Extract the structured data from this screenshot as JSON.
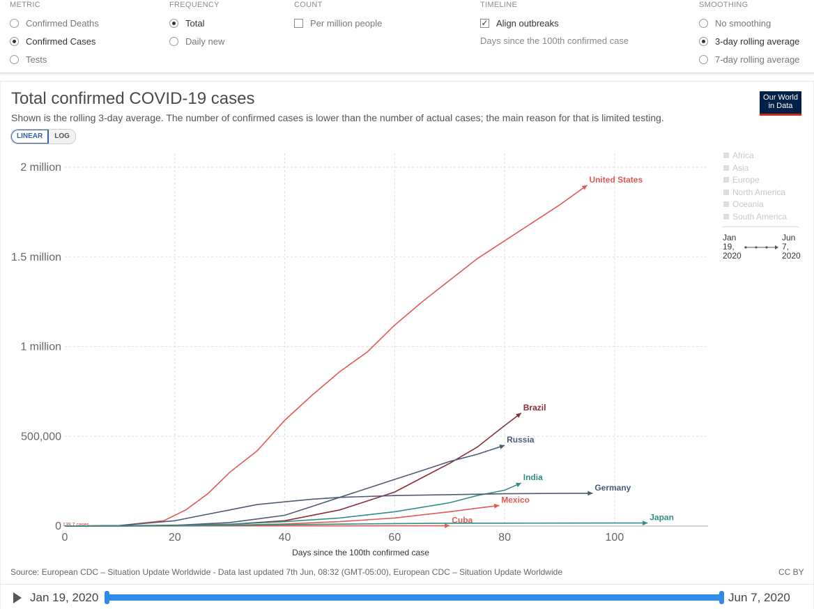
{
  "controls": {
    "metric": {
      "title": "METRIC",
      "options": [
        {
          "label": "Confirmed Deaths",
          "checked": false
        },
        {
          "label": "Confirmed Cases",
          "checked": true
        },
        {
          "label": "Tests",
          "checked": false
        }
      ]
    },
    "frequency": {
      "title": "FREQUENCY",
      "options": [
        {
          "label": "Total",
          "checked": true
        },
        {
          "label": "Daily new",
          "checked": false
        }
      ]
    },
    "count": {
      "title": "COUNT",
      "options": [
        {
          "label": "Per million people",
          "checked": false
        }
      ]
    },
    "timeline": {
      "title": "TIMELINE",
      "align_label": "Align outbreaks",
      "align_checked": true,
      "note": "Days since the 100th confirmed case"
    },
    "smoothing": {
      "title": "SMOOTHING",
      "options": [
        {
          "label": "No smoothing",
          "checked": false
        },
        {
          "label": "3-day rolling average",
          "checked": true
        },
        {
          "label": "7-day rolling average",
          "checked": false
        }
      ]
    }
  },
  "header": {
    "title": "Total confirmed COVID-19 cases",
    "subtitle": "Shown is the rolling 3-day average. The number of confirmed cases is lower than the number of actual cases; the main reason for that is limited testing.",
    "logo_line1": "Our World",
    "logo_line2": "in Data",
    "scale_linear": "LINEAR",
    "scale_log": "LOG"
  },
  "legend": {
    "regions": [
      "Africa",
      "Asia",
      "Europe",
      "North America",
      "Oceania",
      "South America"
    ],
    "start": [
      "Jan",
      "19,",
      "2020"
    ],
    "end": [
      "Jun",
      "7,",
      "2020"
    ]
  },
  "chart_data": {
    "type": "line",
    "title": "Total confirmed COVID-19 cases",
    "xlabel": "Days since the 100th confirmed case",
    "ylabel": "",
    "xlim": [
      0,
      117
    ],
    "ylim": [
      0,
      2000000
    ],
    "x_ticks": [
      "0",
      "20",
      "40",
      "60",
      "80",
      "100"
    ],
    "y_ticks": [
      "0",
      "500,000",
      "1 million",
      "1.5 million",
      "2 million"
    ],
    "min_label": "139.7 cases",
    "grid": true,
    "legend_position": "right",
    "series": [
      {
        "name": "United States",
        "color": "#e05a55",
        "x": [
          0,
          10,
          18,
          22,
          26,
          30,
          35,
          40,
          45,
          50,
          55,
          60,
          65,
          70,
          75,
          80,
          85,
          90,
          95
        ],
        "y": [
          140,
          3000,
          30000,
          90000,
          180000,
          300000,
          420000,
          590000,
          730000,
          860000,
          970000,
          1120000,
          1250000,
          1370000,
          1490000,
          1590000,
          1690000,
          1790000,
          1900000
        ]
      },
      {
        "name": "Brazil",
        "color": "#8b2d3b",
        "x": [
          0,
          10,
          20,
          30,
          40,
          50,
          55,
          60,
          65,
          70,
          75,
          80,
          83
        ],
        "y": [
          140,
          1500,
          5000,
          10000,
          30000,
          90000,
          140000,
          190000,
          270000,
          350000,
          440000,
          560000,
          630000
        ]
      },
      {
        "name": "Russia",
        "color": "#4c5a75",
        "x": [
          0,
          10,
          20,
          30,
          40,
          45,
          50,
          55,
          60,
          65,
          70,
          75,
          80
        ],
        "y": [
          140,
          1000,
          4000,
          20000,
          60000,
          110000,
          160000,
          210000,
          260000,
          310000,
          360000,
          400000,
          450000
        ]
      },
      {
        "name": "India",
        "color": "#2f8f86",
        "x": [
          0,
          10,
          20,
          30,
          40,
          50,
          60,
          70,
          75,
          80,
          83
        ],
        "y": [
          140,
          800,
          3000,
          10000,
          25000,
          45000,
          80000,
          130000,
          170000,
          200000,
          240000
        ]
      },
      {
        "name": "Germany",
        "color": "#4c5a75",
        "x": [
          0,
          10,
          20,
          25,
          30,
          35,
          40,
          45,
          50,
          60,
          70,
          80,
          90,
          96
        ],
        "y": [
          140,
          3000,
          30000,
          60000,
          90000,
          120000,
          135000,
          150000,
          160000,
          170000,
          175000,
          180000,
          182000,
          183000
        ]
      },
      {
        "name": "Mexico",
        "color": "#e05a55",
        "x": [
          0,
          10,
          20,
          30,
          40,
          50,
          60,
          70,
          75,
          79
        ],
        "y": [
          140,
          500,
          2000,
          5000,
          12000,
          25000,
          45000,
          80000,
          100000,
          115000
        ]
      },
      {
        "name": "Cuba",
        "color": "#e05a55",
        "x": [
          0,
          10,
          20,
          40,
          60,
          70
        ],
        "y": [
          140,
          300,
          600,
          1200,
          1900,
          2100
        ]
      },
      {
        "name": "Japan",
        "color": "#2f8f86",
        "x": [
          0,
          10,
          20,
          30,
          40,
          50,
          60,
          70,
          80,
          90,
          100,
          106
        ],
        "y": [
          140,
          500,
          1500,
          4000,
          8000,
          11000,
          14000,
          16000,
          16500,
          16800,
          17000,
          17200
        ]
      }
    ]
  },
  "footer": {
    "source": "Source: European CDC – Situation Update Worldwide - Data last updated 7th Jun, 08:32 (GMT-05:00), European CDC – Situation Update Worldwide",
    "license": "CC BY",
    "start_date": "Jan 19, 2020",
    "end_date": "Jun 7, 2020"
  }
}
